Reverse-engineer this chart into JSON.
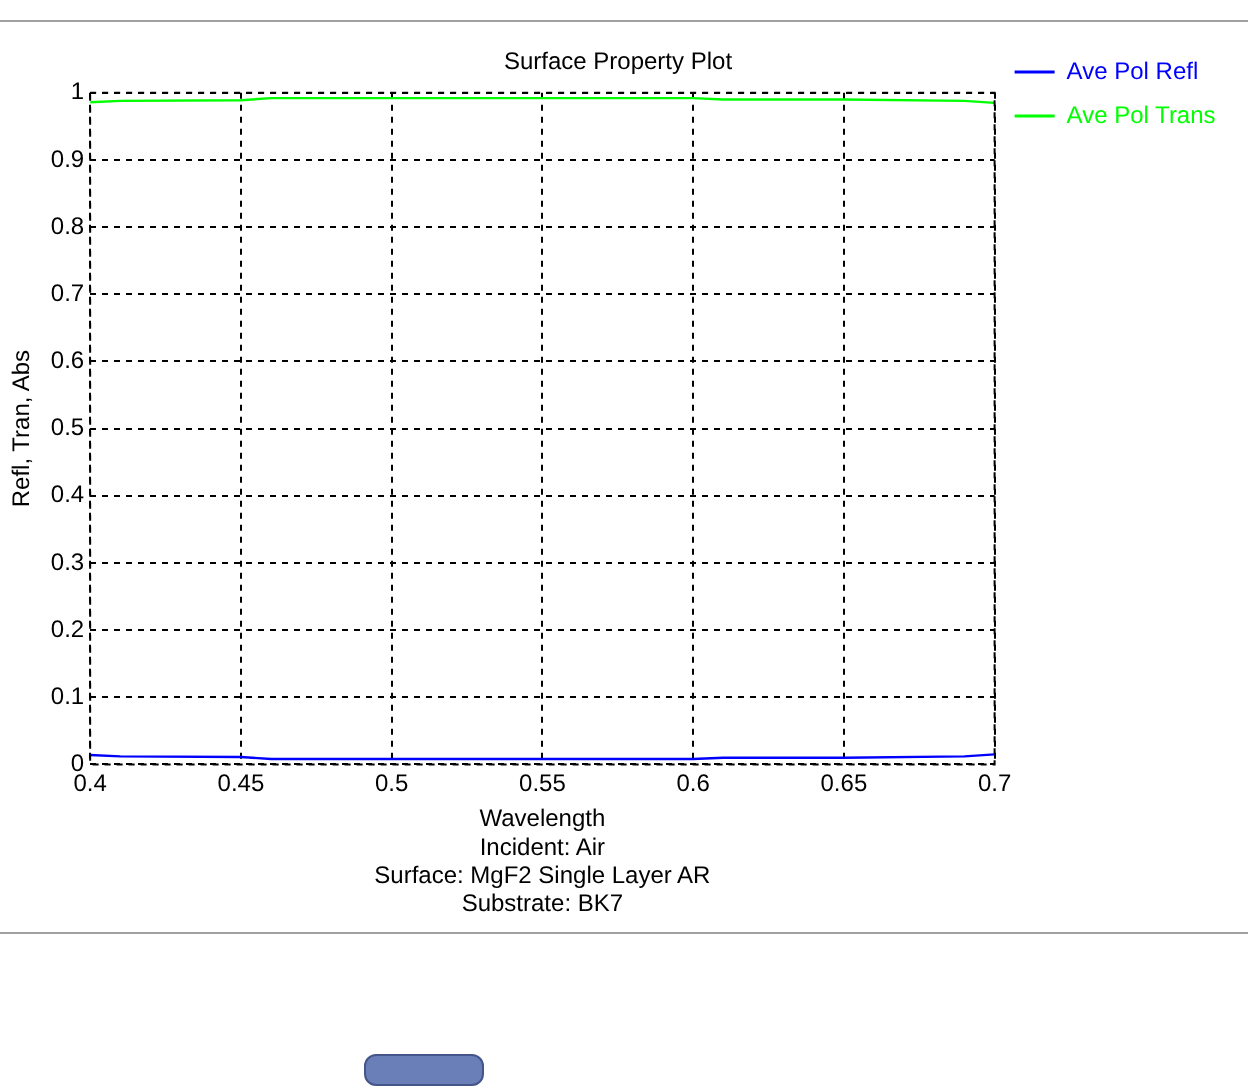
{
  "chart_data": {
    "type": "line",
    "title": "Surface Property Plot",
    "xlabel": "Wavelength",
    "ylabel": "Refl, Tran, Abs",
    "annotations": [
      "Incident: Air",
      "Surface: MgF2 Single Layer AR",
      "Substrate: BK7"
    ],
    "x": [
      0.4,
      0.41,
      0.45,
      0.46,
      0.5,
      0.55,
      0.6,
      0.61,
      0.65,
      0.69,
      0.7
    ],
    "series": [
      {
        "name": "Ave Pol Refl",
        "color": "#0000ff",
        "values": [
          0.014,
          0.012,
          0.011,
          0.008,
          0.008,
          0.008,
          0.008,
          0.01,
          0.01,
          0.012,
          0.015
        ]
      },
      {
        "name": "Ave Pol Trans",
        "color": "#00ff00",
        "values": [
          0.986,
          0.988,
          0.989,
          0.992,
          0.992,
          0.992,
          0.992,
          0.99,
          0.99,
          0.988,
          0.985
        ]
      }
    ],
    "xlim": [
      0.4,
      0.7
    ],
    "xticks": [
      0.4,
      0.45,
      0.5,
      0.55,
      0.6,
      0.65,
      0.7
    ],
    "ylim": [
      0,
      1
    ],
    "yticks": [
      0,
      0.1,
      0.2,
      0.3,
      0.4,
      0.5,
      0.6,
      0.7,
      0.8,
      0.9,
      1
    ],
    "grid": true,
    "legend": "right",
    "marker": "none",
    "line_style": "solid"
  }
}
